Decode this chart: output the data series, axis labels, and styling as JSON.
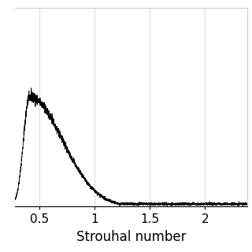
{
  "title": "",
  "xlabel": "Strouhal number",
  "ylabel": "",
  "xlim": [
    0.28,
    2.38
  ],
  "ylim": [
    0.0,
    3.0
  ],
  "xticks": [
    0.5,
    1.0,
    1.5,
    2.0
  ],
  "xtick_labels": [
    "0.5",
    "1",
    "1.5",
    "2"
  ],
  "yticks": [],
  "grid": true,
  "line_color": "#000000",
  "line_width": 0.6,
  "background_color": "#ffffff",
  "peak_st": 0.41,
  "peak_amp": 1.65,
  "noise_level": 0.04,
  "noise_amplitude": 0.022,
  "seed": 42,
  "grid_color": "#cccccc",
  "grid_linewidth": 0.5,
  "xlabel_fontsize": 12,
  "xtick_fontsize": 11,
  "figsize": [
    3.2,
    3.2
  ],
  "dpi": 100
}
